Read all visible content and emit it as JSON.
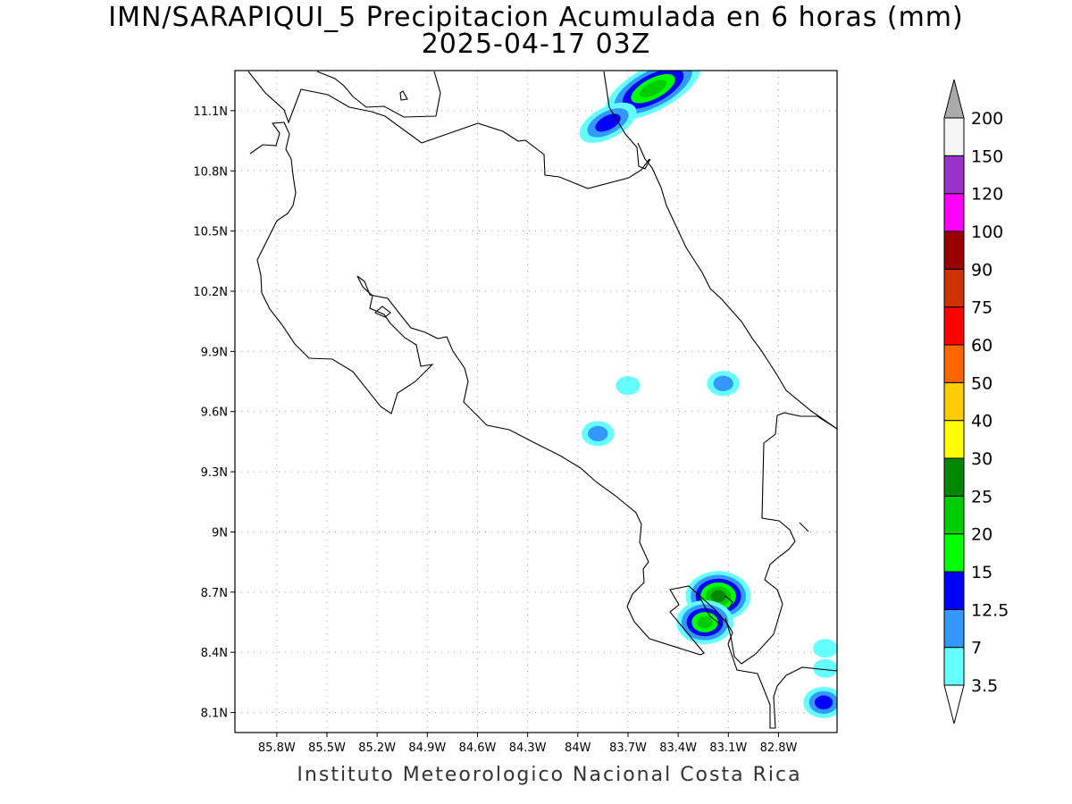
{
  "title": "IMN/SARAPIQUI_5 Precipitacion Acumulada en 6 horas (mm)",
  "subtitle": "2025-04-17 03Z",
  "credit": "Instituto Meteorologico Nacional Costa Rica",
  "map": {
    "lon_range": [
      -86.05,
      -82.45
    ],
    "lat_range": [
      8.0,
      11.3
    ],
    "grid": true,
    "x_ticks": [
      "85.8W",
      "85.5W",
      "85.2W",
      "84.9W",
      "84.6W",
      "84.3W",
      "84W",
      "83.7W",
      "83.4W",
      "83.1W",
      "82.8W"
    ],
    "y_ticks": [
      "8.1N",
      "8.4N",
      "8.7N",
      "9N",
      "9.3N",
      "9.6N",
      "9.9N",
      "10.2N",
      "10.5N",
      "10.8N",
      "11.1N"
    ]
  },
  "colorbar": {
    "labels": [
      "3.5",
      "7",
      "12.5",
      "15",
      "20",
      "25",
      "30",
      "40",
      "50",
      "60",
      "75",
      "90",
      "100",
      "120",
      "150",
      "200"
    ],
    "colors": [
      "#66ffff",
      "#3399ff",
      "#0000ff",
      "#00ff00",
      "#00cc00",
      "#008800",
      "#ffff00",
      "#ffcc00",
      "#ff6600",
      "#ff0000",
      "#cc3300",
      "#990000",
      "#ff00ff",
      "#9933cc",
      "#f5f5f5"
    ],
    "over_color": "#aaaaaa"
  },
  "rain_cells": [
    {
      "lon": -83.55,
      "lat": 11.21,
      "value": 20
    },
    {
      "lon": -83.82,
      "lat": 11.04,
      "value": 12.5
    },
    {
      "lon": -83.7,
      "lat": 9.73,
      "value": 3.5
    },
    {
      "lon": -83.13,
      "lat": 9.74,
      "value": 7
    },
    {
      "lon": -83.88,
      "lat": 9.49,
      "value": 7
    },
    {
      "lon": -83.16,
      "lat": 8.68,
      "value": 25
    },
    {
      "lon": -83.24,
      "lat": 8.55,
      "value": 20
    },
    {
      "lon": -82.53,
      "lat": 8.15,
      "value": 12.5
    },
    {
      "lon": -82.52,
      "lat": 8.42,
      "value": 3.5
    },
    {
      "lon": -82.52,
      "lat": 8.32,
      "value": 3.5
    }
  ]
}
